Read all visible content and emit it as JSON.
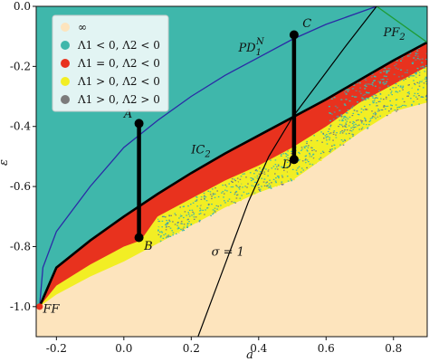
{
  "chart_data": {
    "type": "scatter",
    "xlabel": "a",
    "ylabel": "ε",
    "xlim": [
      -0.26,
      0.9
    ],
    "ylim": [
      -1.1,
      0.0
    ],
    "xticks": [
      "-0.2",
      "0.0",
      "0.2",
      "0.4",
      "0.6",
      "0.8"
    ],
    "yticks": [
      "0.0",
      "-0.2",
      "-0.4",
      "-0.6",
      "-0.8",
      "-1.0"
    ],
    "xtick_values": [
      -0.2,
      0.0,
      0.2,
      0.4,
      0.6,
      0.8
    ],
    "ytick_values": [
      0.0,
      -0.2,
      -0.4,
      -0.6,
      -0.8,
      -1.0
    ],
    "legend": {
      "placement": "top-left",
      "entries": [
        {
          "label": "∞",
          "color": "#fde4bd"
        },
        {
          "label": "Λ1 < 0, Λ2 < 0",
          "color": "#3fb7ab"
        },
        {
          "label": "Λ1 = 0, Λ2 < 0",
          "color": "#e8321e"
        },
        {
          "label": "Λ1 > 0, Λ2 < 0",
          "color": "#f2ee24"
        },
        {
          "label": "Λ1 > 0, Λ2 > 0",
          "color": "#7b7b7b"
        }
      ]
    },
    "colors": {
      "infinity": "#fde4bd",
      "stable": "#3fb7ab",
      "quasi": "#e8321e",
      "chaos": "#f2ee24",
      "hyperchaos": "#7b7b7b",
      "blue_curve": "#2b2ba6",
      "green_curve": "#1f9b35"
    },
    "regions": {
      "region_top_boundary": [
        [
          -0.25,
          -1.0
        ],
        [
          -0.2,
          -0.9
        ],
        [
          0.0,
          -0.72
        ],
        [
          0.2,
          -0.6
        ],
        [
          0.4,
          -0.5
        ],
        [
          0.6,
          -0.42
        ],
        [
          0.8,
          -0.34
        ],
        [
          0.9,
          -0.3
        ]
      ],
      "ic2_curve": [
        [
          -0.25,
          -1.0
        ],
        [
          -0.2,
          -0.87
        ],
        [
          -0.1,
          -0.78
        ],
        [
          0.0,
          -0.7
        ],
        [
          0.1,
          -0.625
        ],
        [
          0.2,
          -0.555
        ],
        [
          0.3,
          -0.49
        ],
        [
          0.4,
          -0.43
        ],
        [
          0.5,
          -0.37
        ],
        [
          0.6,
          -0.31
        ],
        [
          0.7,
          -0.245
        ],
        [
          0.8,
          -0.18
        ],
        [
          0.9,
          -0.12
        ]
      ],
      "red_lower": [
        [
          -0.25,
          -1.0
        ],
        [
          -0.2,
          -0.93
        ],
        [
          -0.1,
          -0.86
        ],
        [
          0.0,
          -0.8
        ],
        [
          0.05,
          -0.78
        ],
        [
          0.1,
          -0.7
        ],
        [
          0.2,
          -0.64
        ],
        [
          0.3,
          -0.58
        ],
        [
          0.4,
          -0.53
        ],
        [
          0.5,
          -0.47
        ],
        [
          0.6,
          -0.4
        ],
        [
          0.7,
          -0.32
        ],
        [
          0.8,
          -0.26
        ],
        [
          0.9,
          -0.2
        ]
      ],
      "yellow_lower": [
        [
          -0.25,
          -1.0
        ],
        [
          -0.2,
          -0.96
        ],
        [
          -0.1,
          -0.9
        ],
        [
          0.0,
          -0.85
        ],
        [
          0.1,
          -0.79
        ],
        [
          0.2,
          -0.73
        ],
        [
          0.3,
          -0.67
        ],
        [
          0.4,
          -0.62
        ],
        [
          0.5,
          -0.58
        ],
        [
          0.6,
          -0.5
        ],
        [
          0.7,
          -0.42
        ],
        [
          0.8,
          -0.35
        ],
        [
          0.9,
          -0.32
        ]
      ],
      "pd_curve": [
        [
          -0.25,
          -1.0
        ],
        [
          -0.24,
          -0.87
        ],
        [
          -0.2,
          -0.75
        ],
        [
          -0.1,
          -0.6
        ],
        [
          0.0,
          -0.47
        ],
        [
          0.1,
          -0.38
        ],
        [
          0.2,
          -0.3
        ],
        [
          0.3,
          -0.23
        ],
        [
          0.4,
          -0.17
        ],
        [
          0.5,
          -0.11
        ],
        [
          0.6,
          -0.06
        ],
        [
          0.7,
          -0.02
        ],
        [
          0.75,
          0.0
        ]
      ],
      "sigma_curve": [
        [
          0.22,
          -1.1
        ],
        [
          0.27,
          -0.95
        ],
        [
          0.32,
          -0.8
        ],
        [
          0.37,
          -0.65
        ],
        [
          0.43,
          -0.5
        ],
        [
          0.5,
          -0.37
        ],
        [
          0.58,
          -0.25
        ],
        [
          0.66,
          -0.13
        ],
        [
          0.75,
          0.0
        ]
      ],
      "pf2_curve": [
        [
          0.75,
          0.0
        ],
        [
          0.9,
          -0.12
        ]
      ]
    },
    "segments": [
      {
        "from_label": "A",
        "to_label": "B",
        "x": 0.045,
        "y_from": -0.39,
        "y_to": -0.77
      },
      {
        "from_label": "C",
        "to_label": "D",
        "x": 0.505,
        "y_from": -0.095,
        "y_to": -0.51
      }
    ],
    "points": [
      {
        "label": "FF",
        "x": -0.25,
        "y": -1.0,
        "color": "#e8321e"
      }
    ],
    "annotations": [
      {
        "text": "A",
        "x": 0.0,
        "y": -0.37
      },
      {
        "text": "B",
        "x": 0.06,
        "y": -0.81
      },
      {
        "text": "C",
        "x": 0.53,
        "y": -0.07
      },
      {
        "text": "D",
        "x": 0.47,
        "y": -0.54
      },
      {
        "text": "FF",
        "x": -0.24,
        "y": -1.02
      },
      {
        "text": "PD1N",
        "x": 0.34,
        "y": -0.15
      },
      {
        "text": "PF2",
        "x": 0.77,
        "y": -0.1
      },
      {
        "text": "IC2",
        "x": 0.2,
        "y": -0.49
      },
      {
        "text": "σ = 1",
        "x": 0.26,
        "y": -0.83
      }
    ],
    "grid": false
  }
}
